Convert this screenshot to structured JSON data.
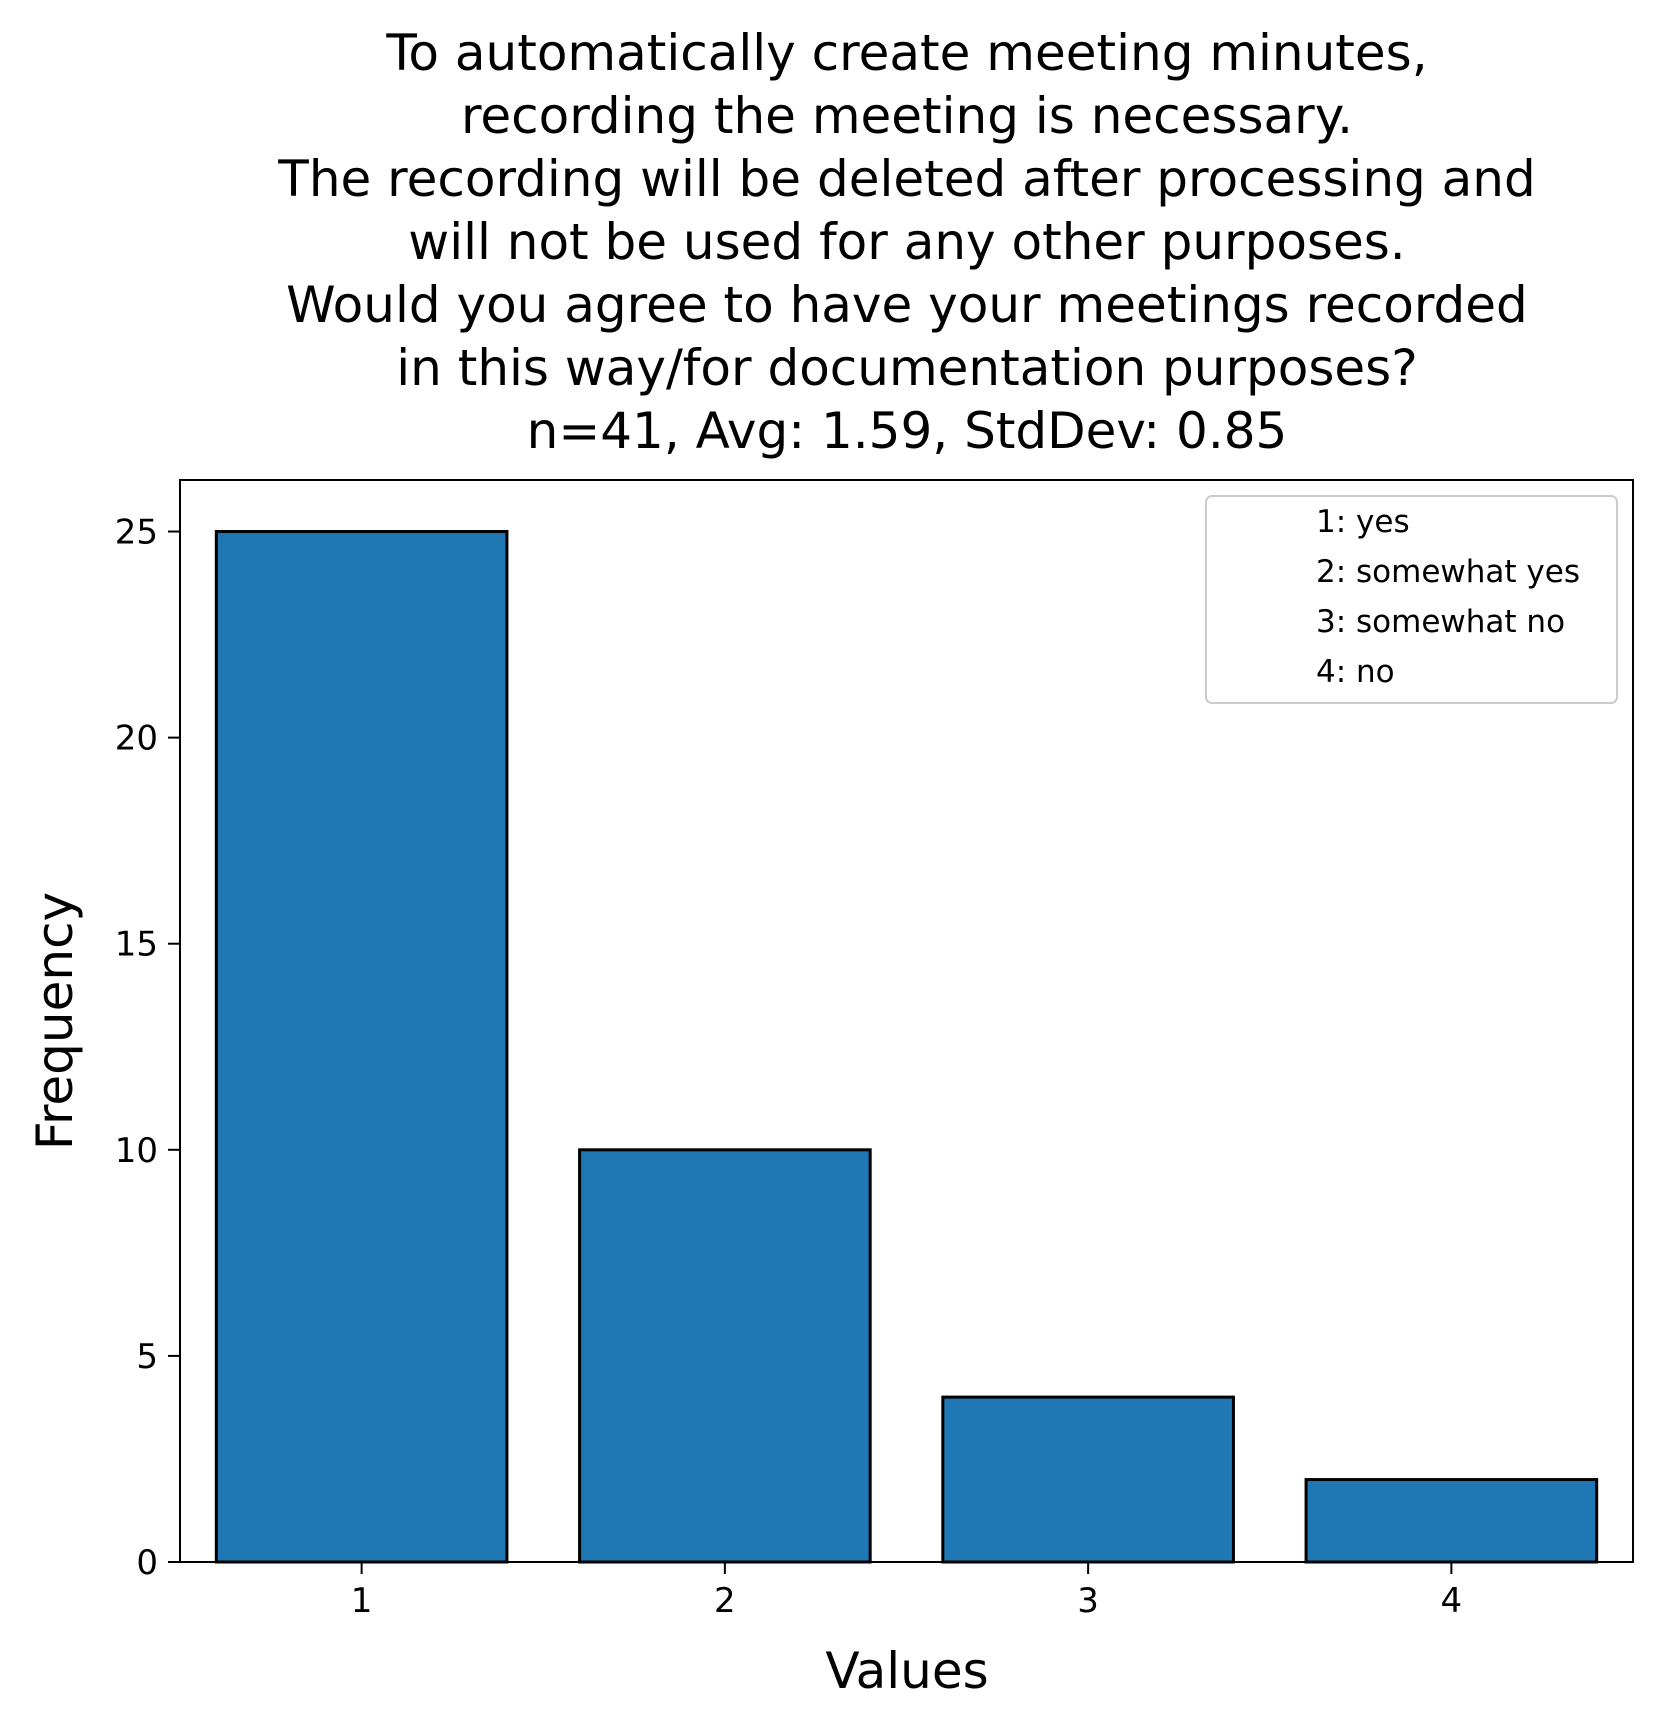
{
  "chart_data": {
    "type": "bar",
    "title_lines": [
      "To automatically create meeting minutes,",
      "recording the meeting is necessary.",
      "The recording will be deleted after processing and",
      "will not be used for any other purposes.",
      "Would you agree to have your meetings recorded",
      "in this way/for documentation purposes?",
      "n=41, Avg: 1.59, StdDev: 0.85"
    ],
    "xlabel": "Values",
    "ylabel": "Frequency",
    "categories": [
      "1",
      "2",
      "3",
      "4"
    ],
    "values": [
      25,
      10,
      4,
      2
    ],
    "ylim": [
      0,
      26.25
    ],
    "yticks": [
      0,
      5,
      10,
      15,
      20,
      25
    ],
    "grid": false,
    "legend": {
      "placement": "top-right",
      "entries": [
        "1: yes",
        "2: somewhat yes",
        "3: somewhat no",
        "4: no"
      ]
    },
    "bar_color": "#1f77b4",
    "edge_color": "#000000"
  }
}
